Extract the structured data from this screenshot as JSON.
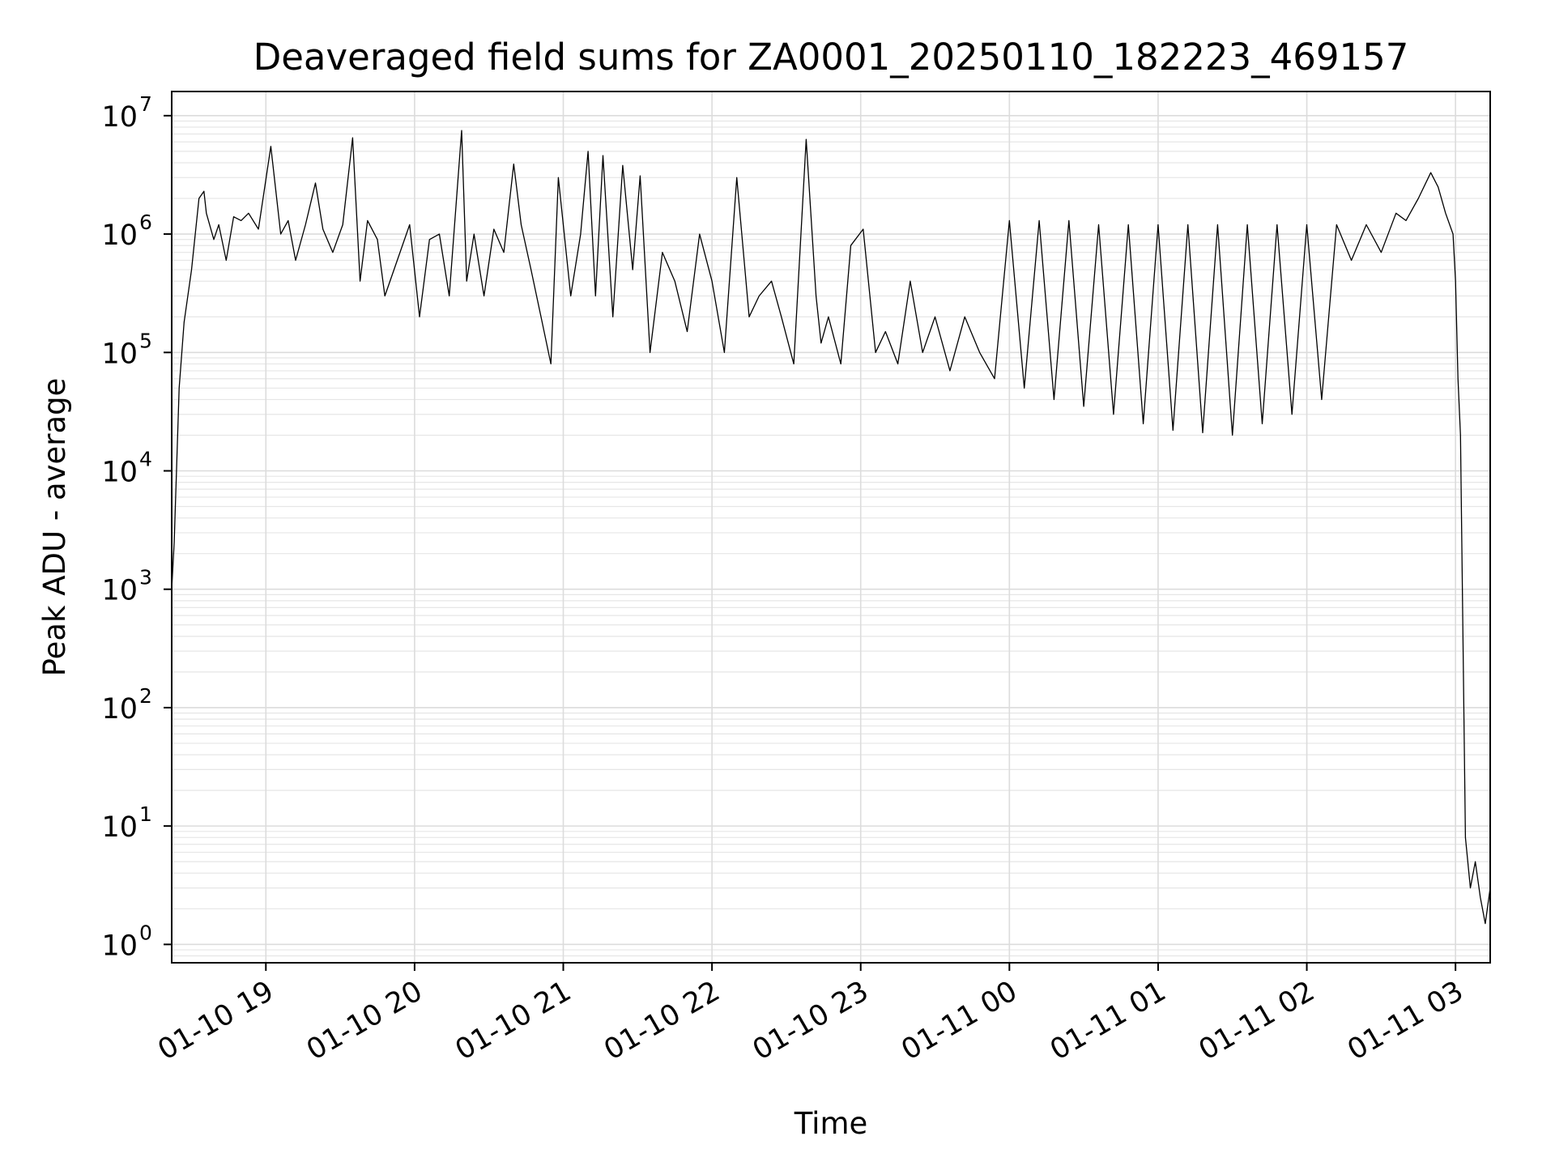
{
  "chart_data": {
    "type": "line",
    "title": "Deaveraged field sums for ZA0001_20250110_182223_469157",
    "xlabel": "Time",
    "ylabel": "Peak ADU - average",
    "yscale": "log",
    "ylim": [
      0.7,
      16000000
    ],
    "xlim": [
      "2025-01-10 18:22",
      "2025-01-11 03:14"
    ],
    "grid": "major and minor, light gray",
    "x_ticks": [
      {
        "t": "2025-01-10 19:00",
        "label": "01-10 19"
      },
      {
        "t": "2025-01-10 20:00",
        "label": "01-10 20"
      },
      {
        "t": "2025-01-10 21:00",
        "label": "01-10 21"
      },
      {
        "t": "2025-01-10 22:00",
        "label": "01-10 22"
      },
      {
        "t": "2025-01-10 23:00",
        "label": "01-10 23"
      },
      {
        "t": "2025-01-11 00:00",
        "label": "01-11 00"
      },
      {
        "t": "2025-01-11 01:00",
        "label": "01-11 01"
      },
      {
        "t": "2025-01-11 02:00",
        "label": "01-11 02"
      },
      {
        "t": "2025-01-11 03:00",
        "label": "01-11 03"
      }
    ],
    "y_ticks": [
      {
        "v": 1,
        "base": "10",
        "exp": "0"
      },
      {
        "v": 10,
        "base": "10",
        "exp": "1"
      },
      {
        "v": 100,
        "base": "10",
        "exp": "2"
      },
      {
        "v": 1000,
        "base": "10",
        "exp": "3"
      },
      {
        "v": 10000,
        "base": "10",
        "exp": "4"
      },
      {
        "v": 100000,
        "base": "10",
        "exp": "5"
      },
      {
        "v": 1000000,
        "base": "10",
        "exp": "6"
      },
      {
        "v": 10000000,
        "base": "10",
        "exp": "7"
      }
    ],
    "series": [
      {
        "color": "#000000",
        "x": [
          "2025-01-10 18:22",
          "2025-01-10 18:23",
          "2025-01-10 18:25",
          "2025-01-10 18:27",
          "2025-01-10 18:30",
          "2025-01-10 18:33",
          "2025-01-10 18:35",
          "2025-01-10 18:36",
          "2025-01-10 18:39",
          "2025-01-10 18:41",
          "2025-01-10 18:44",
          "2025-01-10 18:47",
          "2025-01-10 18:50",
          "2025-01-10 18:53",
          "2025-01-10 18:57",
          "2025-01-10 19:02",
          "2025-01-10 19:06",
          "2025-01-10 19:09",
          "2025-01-10 19:12",
          "2025-01-10 19:16",
          "2025-01-10 19:20",
          "2025-01-10 19:23",
          "2025-01-10 19:27",
          "2025-01-10 19:31",
          "2025-01-10 19:35",
          "2025-01-10 19:38",
          "2025-01-10 19:41",
          "2025-01-10 19:45",
          "2025-01-10 19:48",
          "2025-01-10 19:53",
          "2025-01-10 19:58",
          "2025-01-10 20:02",
          "2025-01-10 20:06",
          "2025-01-10 20:10",
          "2025-01-10 20:14",
          "2025-01-10 20:19",
          "2025-01-10 20:21",
          "2025-01-10 20:24",
          "2025-01-10 20:28",
          "2025-01-10 20:32",
          "2025-01-10 20:36",
          "2025-01-10 20:40",
          "2025-01-10 20:43",
          "2025-01-10 20:47",
          "2025-01-10 20:51",
          "2025-01-10 20:55",
          "2025-01-10 20:58",
          "2025-01-10 21:03",
          "2025-01-10 21:07",
          "2025-01-10 21:10",
          "2025-01-10 21:13",
          "2025-01-10 21:16",
          "2025-01-10 21:20",
          "2025-01-10 21:24",
          "2025-01-10 21:28",
          "2025-01-10 21:31",
          "2025-01-10 21:35",
          "2025-01-10 21:40",
          "2025-01-10 21:45",
          "2025-01-10 21:50",
          "2025-01-10 21:55",
          "2025-01-10 22:00",
          "2025-01-10 22:05",
          "2025-01-10 22:10",
          "2025-01-10 22:15",
          "2025-01-10 22:19",
          "2025-01-10 22:24",
          "2025-01-10 22:28",
          "2025-01-10 22:33",
          "2025-01-10 22:38",
          "2025-01-10 22:42",
          "2025-01-10 22:44",
          "2025-01-10 22:47",
          "2025-01-10 22:52",
          "2025-01-10 22:56",
          "2025-01-10 23:01",
          "2025-01-10 23:06",
          "2025-01-10 23:10",
          "2025-01-10 23:15",
          "2025-01-10 23:20",
          "2025-01-10 23:25",
          "2025-01-10 23:30",
          "2025-01-10 23:36",
          "2025-01-10 23:42",
          "2025-01-10 23:48",
          "2025-01-10 23:54",
          "2025-01-11 00:00",
          "2025-01-11 00:06",
          "2025-01-11 00:12",
          "2025-01-11 00:18",
          "2025-01-11 00:24",
          "2025-01-11 00:30",
          "2025-01-11 00:36",
          "2025-01-11 00:42",
          "2025-01-11 00:48",
          "2025-01-11 00:54",
          "2025-01-11 01:00",
          "2025-01-11 01:06",
          "2025-01-11 01:12",
          "2025-01-11 01:18",
          "2025-01-11 01:24",
          "2025-01-11 01:30",
          "2025-01-11 01:36",
          "2025-01-11 01:42",
          "2025-01-11 01:48",
          "2025-01-11 01:54",
          "2025-01-11 02:00",
          "2025-01-11 02:06",
          "2025-01-11 02:12",
          "2025-01-11 02:18",
          "2025-01-11 02:24",
          "2025-01-11 02:30",
          "2025-01-11 02:36",
          "2025-01-11 02:40",
          "2025-01-11 02:45",
          "2025-01-11 02:50",
          "2025-01-11 02:53",
          "2025-01-11 02:56",
          "2025-01-11 02:59",
          "2025-01-11 03:00",
          "2025-01-11 03:01",
          "2025-01-11 03:02",
          "2025-01-11 03:04",
          "2025-01-11 03:06",
          "2025-01-11 03:08",
          "2025-01-11 03:10",
          "2025-01-11 03:12",
          "2025-01-11 03:14"
        ],
        "y": [
          1000,
          2500,
          50000,
          180000,
          500000,
          2000000,
          2300000,
          1500000,
          900000,
          1200000,
          600000,
          1400000,
          1300000,
          1500000,
          1100000,
          5500000,
          1000000,
          1300000,
          600000,
          1200000,
          2700000,
          1100000,
          700000,
          1200000,
          6500000,
          400000,
          1300000,
          900000,
          300000,
          600000,
          1200000,
          200000,
          900000,
          1000000,
          300000,
          7500000,
          400000,
          1000000,
          300000,
          1100000,
          700000,
          3900000,
          1200000,
          500000,
          200000,
          80000,
          3000000,
          300000,
          1000000,
          5000000,
          300000,
          4600000,
          200000,
          3800000,
          500000,
          3100000,
          100000,
          700000,
          400000,
          150000,
          1000000,
          400000,
          100000,
          3000000,
          200000,
          300000,
          400000,
          200000,
          80000,
          6300000,
          300000,
          120000,
          200000,
          80000,
          800000,
          1100000,
          100000,
          150000,
          80000,
          400000,
          100000,
          200000,
          70000,
          200000,
          100000,
          60000,
          1300000,
          50000,
          1300000,
          40000,
          1300000,
          35000,
          1200000,
          30000,
          1200000,
          25000,
          1200000,
          22000,
          1200000,
          21000,
          1200000,
          20000,
          1200000,
          25000,
          1200000,
          30000,
          1200000,
          40000,
          1200000,
          600000,
          1200000,
          700000,
          1500000,
          1300000,
          2000000,
          3300000,
          2500000,
          1500000,
          1000000,
          400000,
          60000,
          20000,
          8,
          3,
          5,
          2.5,
          1.5,
          3
        ]
      }
    ]
  }
}
